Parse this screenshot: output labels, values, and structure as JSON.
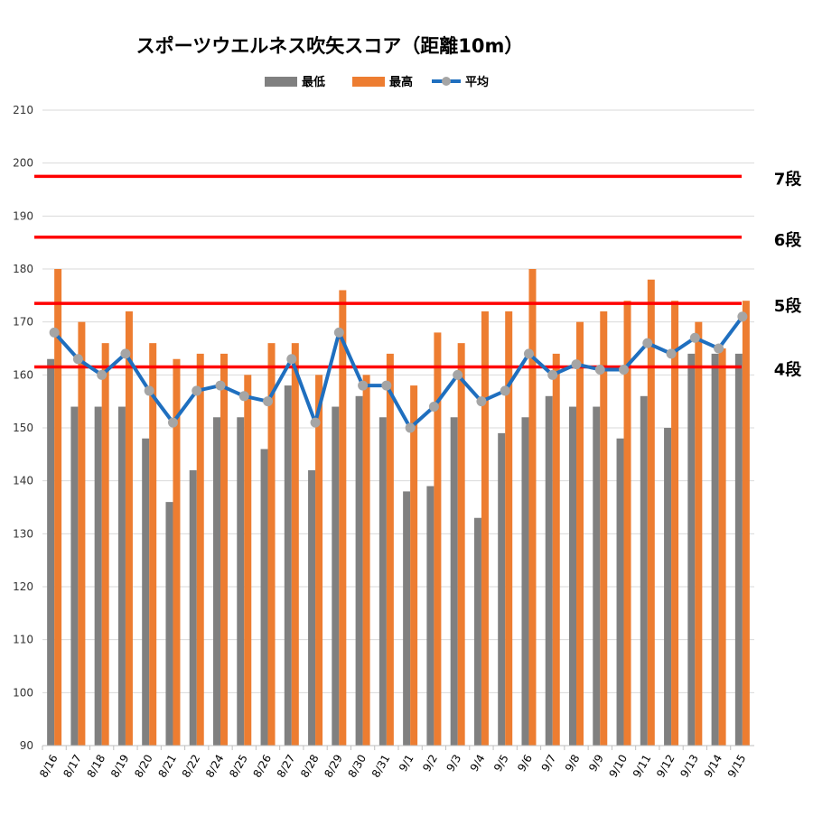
{
  "chart_data": {
    "type": "bar",
    "title": "スポーツウエルネス吹矢スコア（距離10m）",
    "xlabel": "",
    "ylabel": "",
    "ylim": [
      90,
      210
    ],
    "yticks": [
      90,
      100,
      110,
      120,
      130,
      140,
      150,
      160,
      170,
      180,
      190,
      200,
      210
    ],
    "grid": true,
    "legend_position": "top",
    "categories": [
      "8/16",
      "8/17",
      "8/18",
      "8/19",
      "8/20",
      "8/21",
      "8/22",
      "8/24",
      "8/25",
      "8/26",
      "8/27",
      "8/28",
      "8/29",
      "8/30",
      "8/31",
      "9/1",
      "9/2",
      "9/3",
      "9/4",
      "9/5",
      "9/6",
      "9/7",
      "9/8",
      "9/9",
      "9/10",
      "9/11",
      "9/12",
      "9/13",
      "9/14",
      "9/15"
    ],
    "series": [
      {
        "name": "最低",
        "kind": "bar",
        "color": "#808080",
        "values": [
          163,
          154,
          154,
          154,
          148,
          136,
          142,
          152,
          152,
          146,
          158,
          142,
          154,
          156,
          152,
          138,
          139,
          152,
          133,
          149,
          152,
          156,
          154,
          154,
          148,
          156,
          150,
          164,
          164,
          164
        ]
      },
      {
        "name": "最高",
        "kind": "bar",
        "color": "#ED7D31",
        "values": [
          180,
          170,
          166,
          172,
          166,
          163,
          164,
          164,
          160,
          166,
          166,
          160,
          176,
          160,
          164,
          158,
          168,
          166,
          172,
          172,
          180,
          164,
          170,
          172,
          174,
          178,
          174,
          170,
          165,
          174
        ]
      },
      {
        "name": "平均",
        "kind": "line",
        "color": "#1F6FBF",
        "marker_color": "#A5A5A5",
        "values": [
          168,
          163,
          160,
          164,
          157,
          151,
          157,
          158,
          156,
          155,
          163,
          151,
          168,
          158,
          158,
          150,
          154,
          160,
          155,
          157,
          164,
          160,
          162,
          161,
          161,
          166,
          164,
          167,
          165,
          171
        ]
      }
    ],
    "reference_lines": [
      {
        "label": "7段",
        "value": 197.5,
        "color": "#FF0000"
      },
      {
        "label": "6段",
        "value": 186,
        "color": "#FF0000"
      },
      {
        "label": "5段",
        "value": 173.5,
        "color": "#FF0000"
      },
      {
        "label": "4段",
        "value": 161.5,
        "color": "#FF0000"
      }
    ]
  }
}
